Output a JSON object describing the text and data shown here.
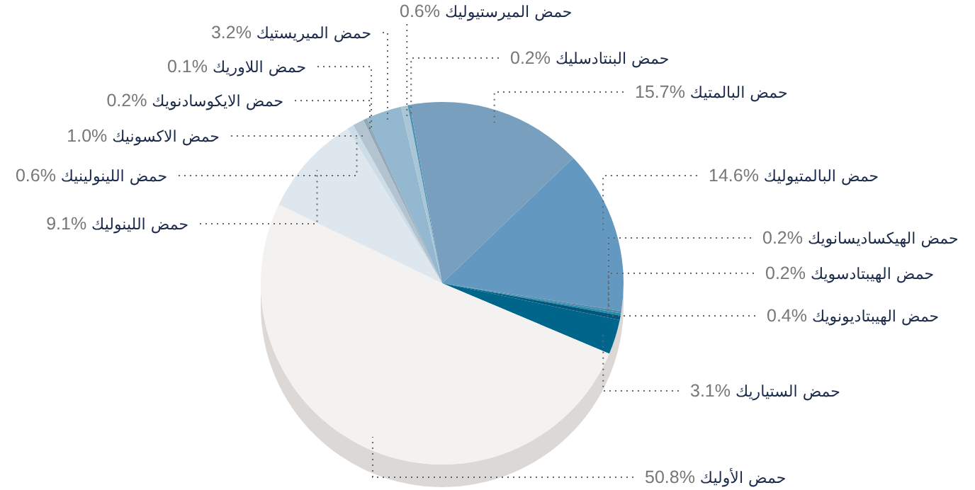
{
  "chart_data": {
    "type": "pie",
    "legend": false,
    "data_labels": true,
    "categories": [
      "حمض اللاوريك",
      "حمض الميريستيك",
      "حمض الميرستيوليك",
      "حمض البنتادسليك",
      "حمض البالمتيك",
      "حمض البالمتيوليك",
      "حمض الهيكساديسانويك",
      "حمض الهيبتادسويك",
      "حمض الهيبتاديونويك",
      "حمض الستياريك",
      "حمض الأوليك",
      "حمض اللينوليك",
      "حمض اللينولينيك",
      "حمض الاكسونيك",
      "حمض الايكوسادنويك"
    ],
    "values": [
      0.1,
      3.2,
      0.6,
      0.2,
      15.7,
      14.6,
      0.2,
      0.2,
      0.4,
      3.1,
      50.8,
      9.1,
      0.6,
      1.0,
      0.2
    ],
    "value_labels": [
      "0.1%",
      "3.2%",
      "0.6%",
      "0.2%",
      "15.7%",
      "14.6%",
      "0.2%",
      "0.2%",
      "0.4%",
      "3.1%",
      "50.8%",
      "9.1%",
      "0.6%",
      "1.0%",
      "0.2%"
    ],
    "colors": [
      "#7f99ad",
      "#93b8cf",
      "#a9c6d6",
      "#4f93b5",
      "#789fbe",
      "#6399c0",
      "#5889a8",
      "#1e8fb3",
      "#03557a",
      "#00658b",
      "#f3f2f1",
      "#dfe7ee",
      "#cddde7",
      "#b3c3cf",
      "#8fa6b6"
    ]
  }
}
